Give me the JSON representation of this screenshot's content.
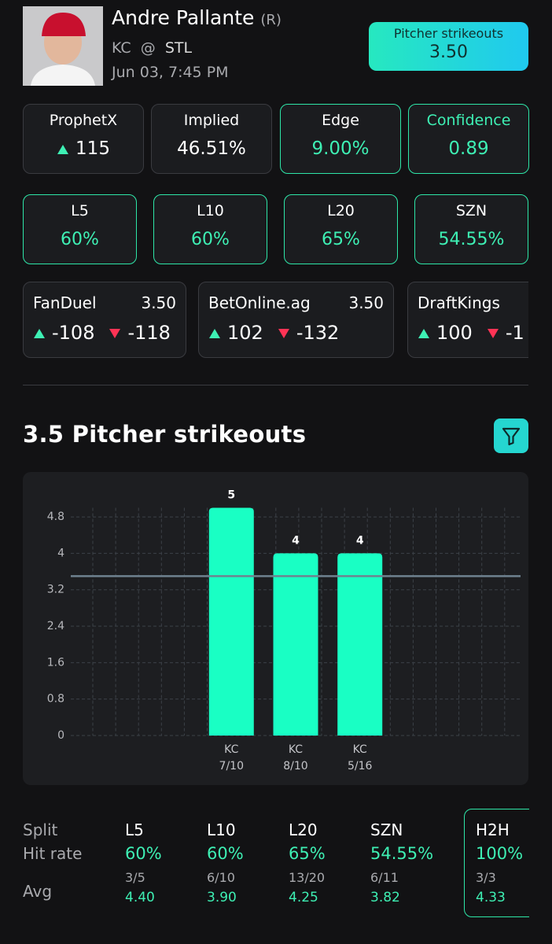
{
  "player": {
    "name": "Andre Pallante",
    "hand": "(R)",
    "team": "KC",
    "at": "@",
    "opponent": "STL",
    "datetime": "Jun 03, 7:45 PM"
  },
  "prop": {
    "label": "Pitcher strikeouts",
    "line": "3.50"
  },
  "metrics": [
    {
      "label": "ProphetX",
      "value": "115"
    },
    {
      "label": "Implied",
      "value": "46.51%"
    },
    {
      "label": "Edge",
      "value": "9.00%"
    },
    {
      "label": "Confidence",
      "value": "0.89"
    }
  ],
  "hit_rates": [
    {
      "label": "L5",
      "value": "60%"
    },
    {
      "label": "L10",
      "value": "60%"
    },
    {
      "label": "L20",
      "value": "65%"
    },
    {
      "label": "SZN",
      "value": "54.55%"
    }
  ],
  "books": [
    {
      "name": "FanDuel",
      "line": "3.50",
      "over": "-108",
      "under": "-118"
    },
    {
      "name": "BetOnline.ag",
      "line": "3.50",
      "over": "102",
      "under": "-132"
    },
    {
      "name": "DraftKings",
      "over": "100",
      "under": "-1"
    }
  ],
  "chart_data": {
    "type": "bar",
    "title": "3.5 Pitcher strikeouts",
    "teams": [
      "KC",
      "KC",
      "KC"
    ],
    "categories": [
      "7/10",
      "8/10",
      "5/16"
    ],
    "values": [
      5,
      4,
      4
    ],
    "color": "#19ffc4",
    "ylim": [
      0,
      5
    ],
    "yticks": [
      0,
      0.8,
      1.6,
      2.4,
      3.2,
      4,
      4.8
    ],
    "grid": true,
    "line_value": 3.5
  },
  "splits": {
    "row_labels": [
      "Split",
      "Hit rate",
      "Avg"
    ],
    "columns": [
      {
        "split": "L5",
        "hit_rate": "60%",
        "record": "3/5",
        "avg": "4.40"
      },
      {
        "split": "L10",
        "hit_rate": "60%",
        "record": "6/10",
        "avg": "3.90"
      },
      {
        "split": "L20",
        "hit_rate": "65%",
        "record": "13/20",
        "avg": "4.25"
      },
      {
        "split": "SZN",
        "hit_rate": "54.55%",
        "record": "6/11",
        "avg": "3.82"
      },
      {
        "split": "H2H",
        "hit_rate": "100%",
        "record": "3/3",
        "avg": "4.33"
      }
    ]
  }
}
